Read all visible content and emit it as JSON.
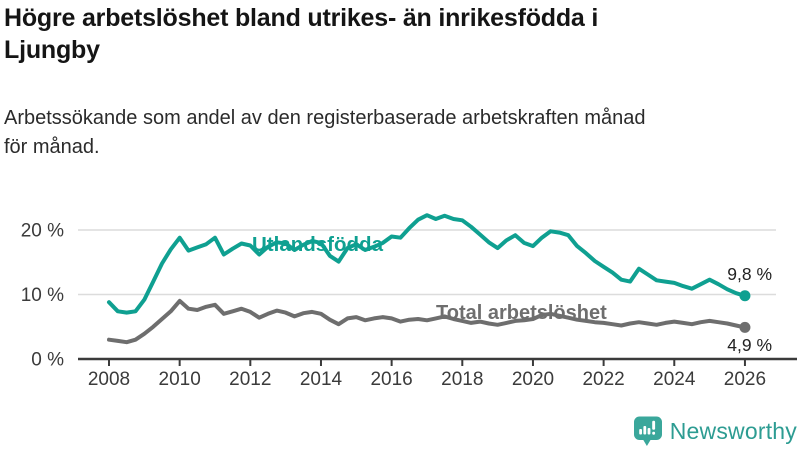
{
  "header": {
    "title_line1": "Högre arbetslöshet bland utrikes- än inrikesfödda i",
    "title_line2": "Ljungby",
    "subtitle_line1": "Arbetssökande som andel av den registerbaserade arbetskraften månad",
    "subtitle_line2": "för månad."
  },
  "chart_data": {
    "type": "line",
    "x_start": 2008,
    "x_step": 0.25,
    "x_axis": {
      "tick_years": [
        2008,
        2010,
        2012,
        2014,
        2016,
        2018,
        2020,
        2022,
        2024,
        2026
      ]
    },
    "y_axis": {
      "ticks": [
        {
          "value": 0,
          "label": "0 %"
        },
        {
          "value": 10,
          "label": "10 %"
        },
        {
          "value": 20,
          "label": "20 %"
        }
      ],
      "ylim": [
        0,
        24
      ],
      "grid": true
    },
    "series": [
      {
        "name": "Utlandsfödda",
        "color": "#0fa091",
        "end_label": "9,8 %",
        "end_value": 9.8,
        "values": [
          8.8,
          7.4,
          7.2,
          7.4,
          9.2,
          12.0,
          14.8,
          17.0,
          18.8,
          16.8,
          17.3,
          17.8,
          18.8,
          16.2,
          17.1,
          17.9,
          17.6,
          16.2,
          17.4,
          18.1,
          17.9,
          16.9,
          17.7,
          18.3,
          18.0,
          16.0,
          15.1,
          17.2,
          17.8,
          16.9,
          17.4,
          18.0,
          19.0,
          18.8,
          20.3,
          21.6,
          22.3,
          21.7,
          22.2,
          21.7,
          21.5,
          20.5,
          19.3,
          18.1,
          17.2,
          18.4,
          19.2,
          18.0,
          17.5,
          18.8,
          19.8,
          19.6,
          19.2,
          17.5,
          16.4,
          15.2,
          14.3,
          13.4,
          12.3,
          12.0,
          14.0,
          13.1,
          12.2,
          12.0,
          11.8,
          11.3,
          10.9,
          11.6,
          12.3,
          11.6,
          10.8,
          10.2,
          9.8
        ]
      },
      {
        "name": "Total arbetslöshet",
        "color": "#6e6e6e",
        "end_label": "4,9 %",
        "end_value": 4.9,
        "values": [
          3.0,
          2.8,
          2.6,
          3.0,
          3.9,
          5.0,
          6.2,
          7.4,
          9.0,
          7.8,
          7.6,
          8.1,
          8.4,
          7.0,
          7.4,
          7.8,
          7.3,
          6.4,
          7.0,
          7.5,
          7.2,
          6.6,
          7.1,
          7.3,
          7.0,
          6.1,
          5.4,
          6.3,
          6.5,
          6.0,
          6.3,
          6.5,
          6.3,
          5.8,
          6.1,
          6.2,
          6.0,
          6.3,
          6.6,
          6.2,
          5.9,
          5.6,
          5.8,
          5.5,
          5.3,
          5.6,
          5.9,
          6.0,
          6.2,
          6.8,
          7.0,
          6.7,
          6.4,
          6.1,
          5.9,
          5.7,
          5.6,
          5.4,
          5.2,
          5.5,
          5.7,
          5.5,
          5.3,
          5.6,
          5.8,
          5.6,
          5.4,
          5.7,
          5.9,
          5.7,
          5.5,
          5.2,
          4.9
        ]
      }
    ]
  },
  "branding": {
    "logo_text": "Newsworthy",
    "logo_color": "#2d9c92",
    "icon_color": "#3aa79b"
  },
  "colors": {
    "axis": "#3b3b3b",
    "grid": "#dcdcdc",
    "annotation": "#222222"
  }
}
